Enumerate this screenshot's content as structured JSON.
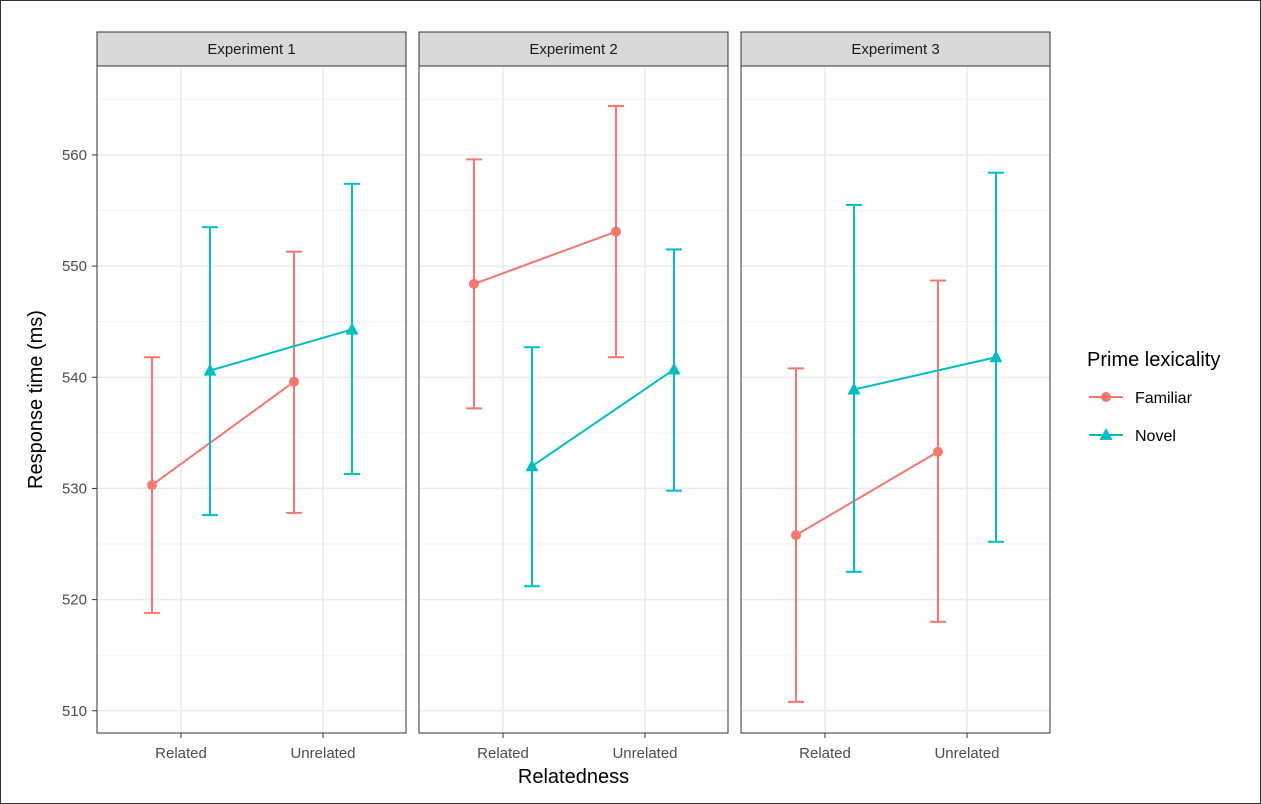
{
  "chart_data": {
    "type": "line",
    "xlabel": "Relatedness",
    "ylabel": "Response time (ms)",
    "categories": [
      "Related",
      "Unrelated"
    ],
    "ylim": [
      508,
      568
    ],
    "yticks": [
      510,
      520,
      530,
      540,
      550,
      560
    ],
    "grid": true,
    "legend": {
      "title": "Prime lexicality",
      "position": "right",
      "items": [
        {
          "name": "Familiar",
          "color": "#F8766D",
          "shape": "circle"
        },
        {
          "name": "Novel",
          "color": "#00BFC4",
          "shape": "triangle"
        }
      ]
    },
    "panels": [
      {
        "title": "Experiment 1",
        "series": [
          {
            "name": "Familiar",
            "values": [
              530.3,
              539.6
            ],
            "lower": [
              518.8,
              527.8
            ],
            "upper": [
              541.8,
              551.3
            ]
          },
          {
            "name": "Novel",
            "values": [
              540.6,
              544.3
            ],
            "lower": [
              527.6,
              531.3
            ],
            "upper": [
              553.5,
              557.4
            ]
          }
        ]
      },
      {
        "title": "Experiment 2",
        "series": [
          {
            "name": "Familiar",
            "values": [
              548.4,
              553.1
            ],
            "lower": [
              537.2,
              541.8
            ],
            "upper": [
              559.6,
              564.4
            ]
          },
          {
            "name": "Novel",
            "values": [
              532.0,
              540.7
            ],
            "lower": [
              521.2,
              529.8
            ],
            "upper": [
              542.7,
              551.5
            ]
          }
        ]
      },
      {
        "title": "Experiment 3",
        "series": [
          {
            "name": "Familiar",
            "values": [
              525.8,
              533.3
            ],
            "lower": [
              510.8,
              518.0
            ],
            "upper": [
              540.8,
              548.7
            ]
          },
          {
            "name": "Novel",
            "values": [
              538.9,
              541.8
            ],
            "lower": [
              522.5,
              525.2
            ],
            "upper": [
              555.5,
              558.4
            ]
          }
        ]
      }
    ]
  }
}
